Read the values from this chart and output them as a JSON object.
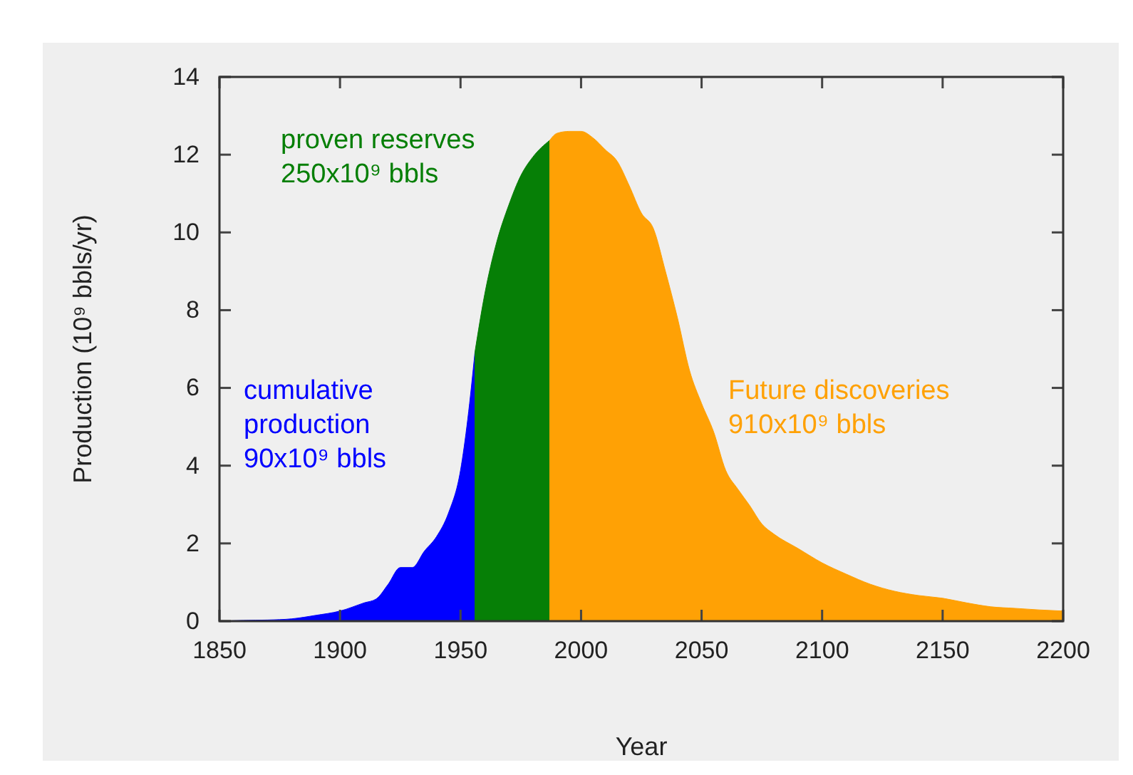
{
  "chart_data": {
    "type": "area",
    "xlabel": "Year",
    "ylabel": "Production (10⁹ bbls/yr)",
    "xlim": [
      1850,
      2200
    ],
    "xticks": [
      1850,
      1900,
      1950,
      2000,
      2050,
      2100,
      2150,
      2200
    ],
    "ylim": [
      0,
      14
    ],
    "yticks": [
      0,
      2,
      4,
      6,
      8,
      10,
      12,
      14
    ],
    "grid": false,
    "series": [
      {
        "color": "#0000ff",
        "x": [
          1850,
          1860,
          1870,
          1880,
          1890,
          1900,
          1910,
          1915,
          1920,
          1925,
          1930,
          1935,
          1940,
          1945,
          1950,
          1953,
          1956
        ],
        "values": [
          0,
          0.02,
          0.03,
          0.06,
          0.15,
          0.26,
          0.47,
          0.57,
          0.95,
          1.38,
          1.38,
          1.8,
          2.17,
          2.78,
          3.88,
          5.2,
          6.93
        ]
      },
      {
        "color": "#067f06",
        "x": [
          1956,
          1960,
          1965,
          1970,
          1975,
          1980,
          1987
        ],
        "values": [
          6.93,
          8.4,
          9.75,
          10.7,
          11.46,
          11.94,
          12.37
        ]
      },
      {
        "color": "#ffa105",
        "x": [
          1987,
          1990,
          1995,
          2000,
          2005,
          2010,
          2015,
          2020,
          2025,
          2030,
          2035,
          2040,
          2045,
          2050,
          2055,
          2060,
          2065,
          2070,
          2075,
          2080,
          2090,
          2100,
          2110,
          2120,
          2130,
          2140,
          2150,
          2160,
          2170,
          2180,
          2190,
          2200
        ],
        "values": [
          12.37,
          12.55,
          12.6,
          12.6,
          12.43,
          12.13,
          11.83,
          11.2,
          10.5,
          10.1,
          9.0,
          7.8,
          6.45,
          5.6,
          4.87,
          3.88,
          3.4,
          2.97,
          2.5,
          2.24,
          1.87,
          1.5,
          1.21,
          0.95,
          0.77,
          0.66,
          0.59,
          0.47,
          0.37,
          0.33,
          0.29,
          0.26
        ]
      }
    ],
    "annotations": [
      "cumulative\nproduction\n90x10⁹ bbls",
      "proven reserves\n250x10⁹ bbls",
      "Future discoveries\n910x10⁹ bbls"
    ]
  }
}
